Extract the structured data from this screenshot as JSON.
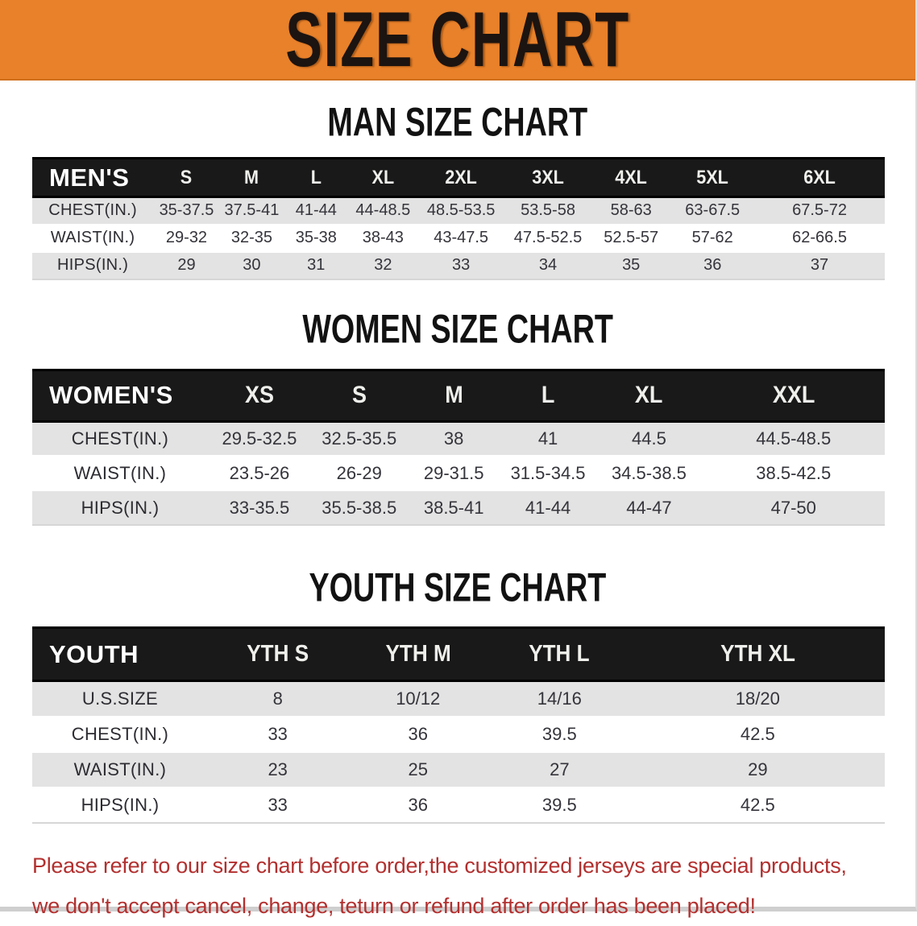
{
  "banner": {
    "title": "SIZE CHART",
    "bg_color": "#E8812A"
  },
  "sections": [
    {
      "heading": "MAN SIZE CHART",
      "header_label": "MEN'S",
      "columns": [
        "S",
        "M",
        "L",
        "XL",
        "2XL",
        "3XL",
        "4XL",
        "5XL",
        "6XL"
      ],
      "rows": [
        {
          "label": "CHEST(IN.)",
          "values": [
            "35-37.5",
            "37.5-41",
            "41-44",
            "44-48.5",
            "48.5-53.5",
            "53.5-58",
            "58-63",
            "63-67.5",
            "67.5-72"
          ]
        },
        {
          "label": "WAIST(IN.)",
          "values": [
            "29-32",
            "32-35",
            "35-38",
            "38-43",
            "43-47.5",
            "47.5-52.5",
            "52.5-57",
            "57-62",
            "62-66.5"
          ]
        },
        {
          "label": "HIPS(IN.)",
          "values": [
            "29",
            "30",
            "31",
            "32",
            "33",
            "34",
            "35",
            "36",
            "37"
          ]
        }
      ]
    },
    {
      "heading": "WOMEN SIZE CHART",
      "header_label": "WOMEN'S",
      "columns": [
        "XS",
        "S",
        "M",
        "L",
        "XL",
        "XXL"
      ],
      "rows": [
        {
          "label": "CHEST(IN.)",
          "values": [
            "29.5-32.5",
            "32.5-35.5",
            "38",
            "41",
            "44.5",
            "44.5-48.5"
          ]
        },
        {
          "label": "WAIST(IN.)",
          "values": [
            "23.5-26",
            "26-29",
            "29-31.5",
            "31.5-34.5",
            "34.5-38.5",
            "38.5-42.5"
          ]
        },
        {
          "label": "HIPS(IN.)",
          "values": [
            "33-35.5",
            "35.5-38.5",
            "38.5-41",
            "41-44",
            "44-47",
            "47-50"
          ]
        }
      ]
    },
    {
      "heading": "YOUTH SIZE CHART",
      "header_label": "YOUTH",
      "columns": [
        "YTH S",
        "YTH M",
        "YTH L",
        "YTH XL"
      ],
      "rows": [
        {
          "label": "U.S.SIZE",
          "values": [
            "8",
            "10/12",
            "14/16",
            "18/20"
          ]
        },
        {
          "label": "CHEST(IN.)",
          "values": [
            "33",
            "36",
            "39.5",
            "42.5"
          ]
        },
        {
          "label": "WAIST(IN.)",
          "values": [
            "23",
            "25",
            "27",
            "29"
          ]
        },
        {
          "label": "HIPS(IN.)",
          "values": [
            "33",
            "36",
            "39.5",
            "42.5"
          ]
        }
      ]
    }
  ],
  "footer": {
    "line1": "Please refer to our size chart before order,the customized jerseys are special products,",
    "line2": "we don't accept cancel, change, teturn or refund after order has been placed!",
    "text_color": "#B2302F"
  }
}
